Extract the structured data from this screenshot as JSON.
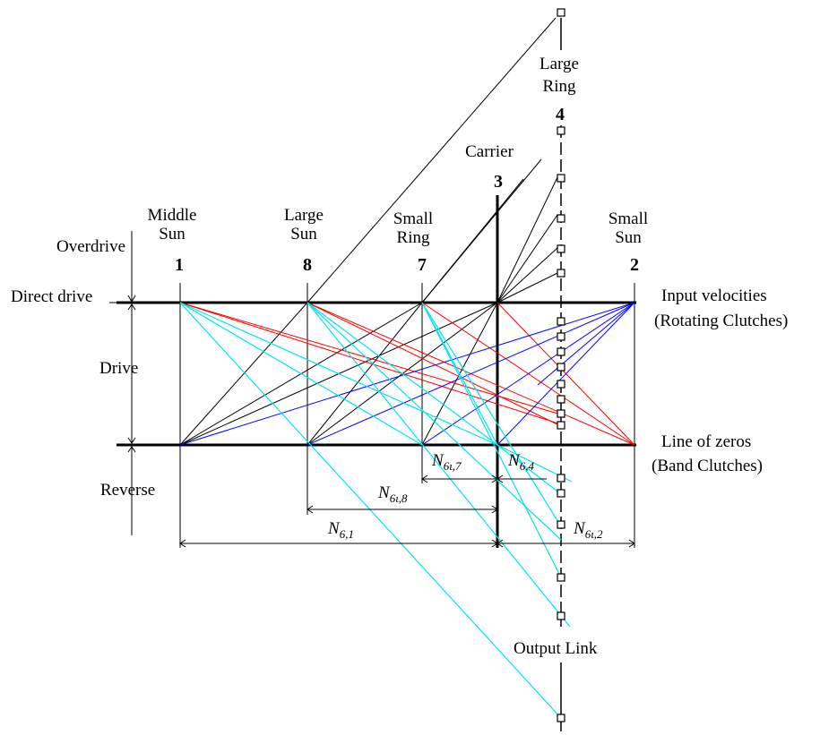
{
  "columns": [
    {
      "id": "1",
      "number": "1",
      "name_lines": [
        "Middle",
        "Sun"
      ]
    },
    {
      "id": "8",
      "number": "8",
      "name_lines": [
        "Large",
        "Sun"
      ]
    },
    {
      "id": "7",
      "number": "7",
      "name_lines": [
        "Small",
        "Ring"
      ]
    },
    {
      "id": "3",
      "number": "3",
      "name_lines": [
        "Carrier"
      ]
    },
    {
      "id": "4",
      "number": "4",
      "name_lines": [
        "Large",
        "Ring"
      ]
    },
    {
      "id": "2",
      "number": "2",
      "name_lines": [
        "Small",
        "Sun"
      ]
    }
  ],
  "left_labels": {
    "overdrive": "Overdrive",
    "direct_drive": "Direct drive",
    "drive": "Drive",
    "reverse": "Reverse"
  },
  "right_labels": {
    "input_line1": "Input velocities",
    "input_line2": "(Rotating Clutches)",
    "zeros_line1": "Line of zeros",
    "zeros_line2": "(Band Clutches)"
  },
  "output_link": "Output Link",
  "dimensions": [
    {
      "id": "n67",
      "base": "N",
      "sub": "6ι,7"
    },
    {
      "id": "n64",
      "base": "N",
      "sub": "6,4"
    },
    {
      "id": "n68",
      "base": "N",
      "sub": "6ι,8"
    },
    {
      "id": "n61",
      "base": "N",
      "sub": "6,1"
    },
    {
      "id": "n62",
      "base": "N",
      "sub": "6ι,2"
    }
  ],
  "colors": {
    "black": "#000000",
    "red": "#ff0000",
    "blue": "#0000ff",
    "cyan": "#00e5ee"
  }
}
